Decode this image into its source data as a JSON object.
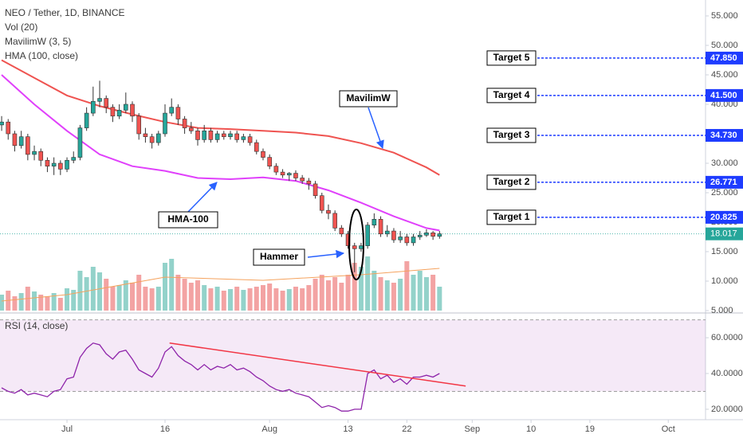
{
  "chart_data": [
    {
      "type": "candlestick",
      "title": "NEO / Tether, 1D, BINANCE",
      "x": [
        0,
        1,
        2,
        3,
        4,
        5,
        6,
        7,
        8,
        9,
        10,
        11,
        12,
        13,
        14,
        15,
        16,
        17,
        18,
        19,
        20,
        21,
        22,
        23,
        24,
        25,
        26,
        27,
        28,
        29,
        30,
        31,
        32,
        33,
        34,
        35,
        36,
        37,
        38,
        39,
        40,
        41,
        42,
        43,
        44,
        45,
        46,
        47,
        48,
        49,
        50,
        51,
        52,
        53,
        54,
        55,
        56,
        57,
        58,
        59,
        60,
        61,
        62,
        63,
        64,
        65,
        66,
        67
      ],
      "open": [
        36.5,
        37.0,
        35.0,
        33.0,
        34.5,
        31.5,
        32.0,
        30.5,
        29.5,
        30.0,
        29.0,
        30.5,
        31.0,
        36.0,
        38.5,
        40.5,
        41.0,
        39.5,
        38.0,
        39.0,
        40.0,
        38.0,
        35.0,
        34.5,
        33.5,
        35.0,
        38.5,
        39.5,
        37.5,
        36.0,
        35.5,
        34.0,
        35.5,
        34.0,
        35.0,
        34.5,
        35.0,
        34.0,
        34.5,
        33.5,
        32.0,
        31.0,
        29.5,
        28.5,
        28.0,
        28.3,
        27.5,
        27.0,
        26.5,
        24.5,
        22.0,
        21.5,
        19.0,
        18.0,
        16.0,
        15.5,
        16.0,
        19.5,
        20.5,
        18.0,
        18.5,
        17.0,
        17.5,
        16.5,
        17.5,
        17.8,
        18.2,
        17.6
      ],
      "high": [
        38.0,
        37.5,
        35.5,
        35.5,
        35.0,
        33.0,
        32.5,
        31.0,
        31.0,
        30.5,
        31.0,
        32.0,
        36.5,
        39.5,
        43.0,
        44.0,
        41.5,
        40.0,
        40.0,
        42.0,
        40.5,
        38.5,
        36.0,
        35.0,
        35.5,
        40.0,
        41.0,
        40.0,
        38.0,
        37.0,
        36.0,
        36.5,
        36.0,
        35.5,
        35.5,
        35.5,
        35.5,
        35.0,
        35.0,
        34.0,
        32.5,
        31.5,
        30.0,
        29.0,
        28.5,
        28.8,
        28.0,
        27.5,
        27.0,
        25.0,
        23.0,
        22.0,
        19.5,
        18.5,
        16.5,
        16.5,
        20.0,
        21.5,
        21.0,
        19.5,
        19.0,
        18.5,
        18.0,
        18.0,
        18.5,
        18.8,
        18.5,
        18.5
      ],
      "low": [
        35.5,
        34.0,
        32.0,
        32.5,
        30.5,
        30.5,
        29.5,
        28.5,
        28.0,
        28.0,
        28.5,
        30.0,
        30.5,
        35.5,
        38.0,
        39.5,
        38.5,
        37.0,
        37.5,
        38.5,
        37.0,
        34.0,
        33.5,
        32.5,
        33.0,
        34.5,
        38.0,
        36.5,
        35.0,
        35.0,
        33.0,
        33.5,
        33.5,
        33.5,
        34.0,
        34.0,
        33.5,
        33.5,
        33.0,
        31.5,
        30.5,
        29.0,
        28.0,
        27.5,
        27.0,
        27.0,
        26.5,
        25.5,
        24.0,
        21.5,
        20.5,
        18.5,
        17.5,
        15.5,
        11.5,
        15.0,
        15.5,
        19.0,
        17.5,
        17.5,
        16.5,
        16.5,
        16.0,
        16.0,
        17.0,
        17.5,
        17.0,
        17.2
      ],
      "close": [
        37.0,
        35.0,
        33.0,
        34.5,
        31.5,
        32.0,
        30.5,
        29.5,
        30.0,
        29.0,
        30.5,
        31.0,
        36.0,
        38.5,
        40.5,
        41.0,
        39.5,
        38.0,
        39.0,
        40.0,
        38.0,
        35.0,
        34.5,
        33.5,
        35.0,
        38.5,
        39.5,
        37.5,
        36.0,
        35.5,
        34.0,
        35.5,
        34.0,
        35.0,
        34.5,
        35.0,
        34.0,
        34.5,
        33.5,
        32.0,
        31.0,
        29.5,
        28.5,
        28.0,
        28.3,
        27.5,
        27.0,
        26.5,
        24.5,
        22.0,
        21.5,
        19.0,
        18.0,
        16.0,
        15.5,
        16.0,
        19.5,
        20.5,
        18.0,
        18.5,
        17.0,
        17.5,
        16.5,
        17.5,
        17.8,
        18.2,
        17.6,
        18.017
      ],
      "up_color": "#26a69a",
      "down_color": "#ef5350",
      "volume": {
        "name": "Vol (20)",
        "up_color": "#93d2ca",
        "down_color": "#f3a3a3",
        "values": [
          20,
          25,
          18,
          22,
          30,
          24,
          20,
          18,
          22,
          16,
          28,
          26,
          50,
          42,
          55,
          48,
          40,
          30,
          32,
          38,
          35,
          45,
          30,
          28,
          30,
          60,
          65,
          45,
          40,
          35,
          38,
          32,
          28,
          30,
          25,
          27,
          30,
          26,
          28,
          30,
          32,
          34,
          28,
          25,
          27,
          30,
          28,
          32,
          40,
          45,
          38,
          42,
          35,
          45,
          60,
          55,
          68,
          50,
          42,
          38,
          35,
          40,
          62,
          45,
          50,
          42,
          45,
          30
        ],
        "ma": {
          "color": "#f5a25d",
          "x": [
            0,
            10,
            25,
            40,
            55,
            67
          ],
          "values": [
            12,
            20,
            42,
            38,
            45,
            53
          ]
        }
      },
      "lines": [
        {
          "name": "MavilimW (3, 5)",
          "color": "#ef5350",
          "x": [
            0,
            5,
            10,
            15,
            20,
            25,
            30,
            35,
            40,
            45,
            50,
            55,
            60,
            65,
            67
          ],
          "values": [
            47.5,
            44.5,
            41.5,
            39.7,
            38.3,
            37,
            36,
            35.8,
            35.5,
            35.2,
            34.6,
            33.4,
            31.8,
            29.3,
            28.0
          ]
        },
        {
          "name": "HMA (100, close)",
          "color": "#e040fb",
          "x": [
            0,
            5,
            10,
            15,
            20,
            25,
            30,
            35,
            40,
            45,
            50,
            55,
            60,
            65,
            67
          ],
          "values": [
            45,
            40,
            35.5,
            31.5,
            29.5,
            28.7,
            27.5,
            27.3,
            27.6,
            27.0,
            25.4,
            23.3,
            21.0,
            19.0,
            18.6
          ]
        }
      ],
      "annotations": [
        "MavilimW",
        "HMA-100",
        "Hammer"
      ],
      "targets": [
        {
          "label": "Target 1",
          "value": 20.825,
          "value_label": "20.825"
        },
        {
          "label": "Target 2",
          "value": 26.771,
          "value_label": "26.771"
        },
        {
          "label": "Target 3",
          "value": 34.73,
          "value_label": "34.730"
        },
        {
          "label": "Target 4",
          "value": 41.5,
          "value_label": "41.500"
        },
        {
          "label": "Target 5",
          "value": 47.85,
          "value_label": "47.850"
        }
      ],
      "last_price": {
        "value": 18.017,
        "label": "18.017",
        "color": "#26a69a"
      },
      "xlim": [
        -0.25,
        107.7
      ],
      "xticks": [
        {
          "value": 10,
          "label": "Jul"
        },
        {
          "value": 25,
          "label": "16"
        },
        {
          "value": 41,
          "label": "Aug"
        },
        {
          "value": 53,
          "label": "13"
        },
        {
          "value": 62,
          "label": "22"
        },
        {
          "value": 72,
          "label": "Sep"
        },
        {
          "value": 81,
          "label": "10"
        },
        {
          "value": 90,
          "label": "19"
        },
        {
          "value": 102,
          "label": "Oct"
        }
      ],
      "ylim": [
        5,
        57.7
      ],
      "yticks": [
        {
          "value": 5,
          "label": "5.000"
        },
        {
          "value": 10,
          "label": "10.000"
        },
        {
          "value": 15,
          "label": "15.000"
        },
        {
          "value": 20,
          "label": "20.000"
        },
        {
          "value": 25,
          "label": "25.000"
        },
        {
          "value": 30,
          "label": "30.000"
        },
        {
          "value": 35,
          "label": "35.000"
        },
        {
          "value": 40,
          "label": "40.000"
        },
        {
          "value": 45,
          "label": "45.000"
        },
        {
          "value": 50,
          "label": "50.000"
        },
        {
          "value": 55,
          "label": "55.000"
        }
      ]
    },
    {
      "type": "line",
      "title": "RSI (14, close)",
      "color": "#8e24aa",
      "x": [
        0,
        1,
        2,
        3,
        4,
        5,
        6,
        7,
        8,
        9,
        10,
        11,
        12,
        13,
        14,
        15,
        16,
        17,
        18,
        19,
        20,
        21,
        22,
        23,
        24,
        25,
        26,
        27,
        28,
        29,
        30,
        31,
        32,
        33,
        34,
        35,
        36,
        37,
        38,
        39,
        40,
        41,
        42,
        43,
        44,
        45,
        46,
        47,
        48,
        49,
        50,
        51,
        52,
        53,
        54,
        55,
        56,
        57,
        58,
        59,
        60,
        61,
        62,
        63,
        64,
        65,
        66,
        67
      ],
      "values": [
        32,
        30,
        29,
        31,
        28,
        29,
        28,
        27,
        30,
        31,
        37,
        38,
        49,
        54,
        57,
        56,
        51,
        48,
        52,
        53,
        48,
        42,
        40,
        38,
        43,
        52,
        55,
        50,
        47,
        45,
        42,
        45,
        42,
        44,
        43,
        45,
        42,
        43,
        41,
        38,
        36,
        33,
        31,
        30,
        31,
        29,
        28,
        27,
        24,
        21,
        22,
        21,
        19,
        19,
        20,
        20,
        40,
        42,
        37,
        39,
        35,
        37,
        34,
        38,
        38,
        39,
        38,
        40
      ],
      "bands": [
        30,
        70
      ],
      "band_color": "#9c27b0",
      "trendline": {
        "color": "#f23645",
        "x": [
          25.7,
          71
        ],
        "values": [
          57,
          33
        ]
      },
      "ylim": [
        16.4,
        71.6
      ],
      "yticks": [
        {
          "value": 20,
          "label": "20.0000"
        },
        {
          "value": 40,
          "label": "40.0000"
        },
        {
          "value": 60,
          "label": "60.0000"
        }
      ]
    }
  ]
}
